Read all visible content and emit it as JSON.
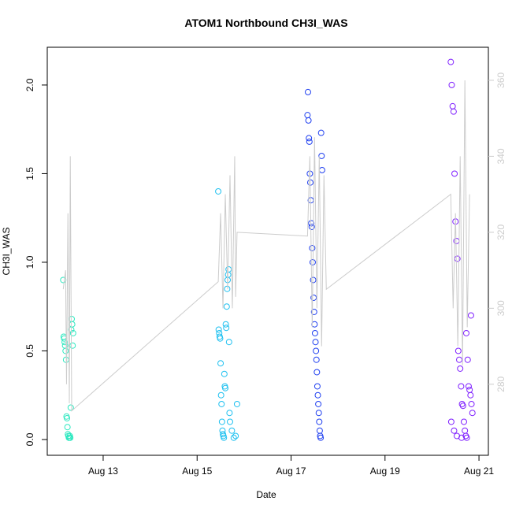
{
  "chart_data": {
    "type": "scatter",
    "title": "ATOM1 Northbound CH3I_WAS",
    "x_label": "Date",
    "y_label": "CH3I_WAS",
    "xlim": [
      11.81,
      21.2
    ],
    "ylim": [
      -0.089,
      2.213
    ],
    "y2lim": [
      261.3,
      368.7
    ],
    "xticks": [
      {
        "value": 13,
        "label": "Aug 13"
      },
      {
        "value": 15,
        "label": "Aug 15"
      },
      {
        "value": 17,
        "label": "Aug 17"
      },
      {
        "value": 19,
        "label": "Aug 19"
      },
      {
        "value": 21,
        "label": "Aug 21"
      }
    ],
    "yticks": [
      {
        "value": 0,
        "label": "0.0"
      },
      0.5,
      {
        "value": 1,
        "label": "1.0"
      },
      1.5,
      {
        "value": 2,
        "label": "2.0"
      }
    ],
    "y2ticks": [
      280,
      300,
      320,
      340,
      360
    ],
    "series": [
      {
        "color": "#2ee8c0",
        "x": [
          12.15,
          12.16,
          12.17,
          12.18,
          12.19,
          12.2,
          12.21,
          12.22,
          12.23,
          12.24,
          12.25,
          12.26,
          12.27,
          12.28,
          12.29,
          12.3,
          12.31,
          12.32,
          12.33,
          12.34,
          12.35,
          12.36
        ],
        "values": [
          0.9,
          0.58,
          0.57,
          0.55,
          0.53,
          0.5,
          0.45,
          0.13,
          0.12,
          0.07,
          0.03,
          0.02,
          0.01,
          0.01,
          0.02,
          0.01,
          0.18,
          0.62,
          0.68,
          0.65,
          0.53,
          0.6
        ]
      },
      {
        "color": "#1ec0f0",
        "x": [
          15.45,
          15.46,
          15.47,
          15.48,
          15.49,
          15.5,
          15.51,
          15.52,
          15.53,
          15.54,
          15.55,
          15.56,
          15.57,
          15.58,
          15.59,
          15.6,
          15.61,
          15.62,
          15.63,
          15.64,
          15.65,
          15.66,
          15.67,
          15.68,
          15.69,
          15.7,
          15.74,
          15.78,
          15.82,
          15.85
        ],
        "values": [
          1.4,
          0.62,
          0.6,
          0.58,
          0.57,
          0.43,
          0.25,
          0.2,
          0.1,
          0.05,
          0.03,
          0.02,
          0.01,
          0.37,
          0.3,
          0.29,
          0.65,
          0.63,
          0.75,
          0.85,
          0.9,
          0.93,
          0.96,
          0.55,
          0.15,
          0.1,
          0.05,
          0.01,
          0.02,
          0.2
        ]
      },
      {
        "color": "#2040f0",
        "x": [
          17.35,
          17.36,
          17.37,
          17.38,
          17.39,
          17.4,
          17.41,
          17.42,
          17.43,
          17.44,
          17.45,
          17.46,
          17.47,
          17.48,
          17.49,
          17.5,
          17.51,
          17.52,
          17.53,
          17.54,
          17.55,
          17.56,
          17.57,
          17.58,
          17.59,
          17.6,
          17.61,
          17.62,
          17.63,
          17.64,
          17.65,
          17.66
        ],
        "values": [
          1.83,
          1.96,
          1.8,
          1.7,
          1.68,
          1.5,
          1.45,
          1.35,
          1.22,
          1.2,
          1.08,
          1.0,
          0.9,
          0.8,
          0.72,
          0.65,
          0.6,
          0.55,
          0.5,
          0.45,
          0.38,
          0.3,
          0.25,
          0.2,
          0.15,
          0.1,
          0.05,
          0.02,
          0.01,
          1.73,
          1.6,
          1.52
        ]
      },
      {
        "color": "#7f1fff",
        "x": [
          20.4,
          20.42,
          20.44,
          20.46,
          20.48,
          20.5,
          20.52,
          20.54,
          20.56,
          20.58,
          20.6,
          20.62,
          20.64,
          20.66,
          20.68,
          20.7,
          20.72,
          20.74,
          20.76,
          20.78,
          20.8,
          20.82,
          20.84,
          20.86,
          20.41,
          20.47,
          20.53,
          20.63,
          20.73,
          20.83
        ],
        "values": [
          2.13,
          2.0,
          1.88,
          1.85,
          1.5,
          1.23,
          1.12,
          1.02,
          0.5,
          0.45,
          0.4,
          0.3,
          0.2,
          0.19,
          0.1,
          0.05,
          0.02,
          0.01,
          0.45,
          0.3,
          0.28,
          0.25,
          0.2,
          0.15,
          0.1,
          0.05,
          0.02,
          0.01,
          0.6,
          0.7
        ]
      },
      {
        "type": "line",
        "axis": "y2",
        "color": "#cccccc",
        "x": [
          12.15,
          12.2,
          12.22,
          12.25,
          12.28,
          12.3,
          12.33,
          15.45,
          15.5,
          15.55,
          15.6,
          15.65,
          15.7,
          15.75,
          15.8,
          15.82,
          15.85,
          17.35,
          17.4,
          17.45,
          17.5,
          17.55,
          17.6,
          17.65,
          17.7,
          17.75,
          20.4,
          20.45,
          20.5,
          20.55,
          20.6,
          20.65,
          20.7,
          20.75,
          20.8
        ],
        "values": [
          305,
          310,
          280,
          325,
          275,
          340,
          273,
          307,
          325,
          300,
          330,
          305,
          335,
          300,
          340,
          303,
          320,
          319,
          340,
          295,
          345,
          300,
          340,
          290,
          335,
          305,
          330,
          300,
          325,
          290,
          340,
          285,
          360,
          295,
          330
        ]
      }
    ]
  }
}
